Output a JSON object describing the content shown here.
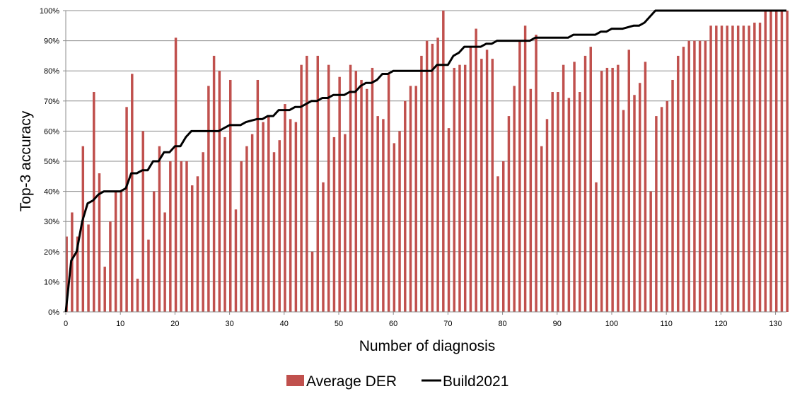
{
  "chart_data": {
    "type": "bar",
    "xlabel": "Number of diagnosis",
    "ylabel": "Top-3 accuracy",
    "xlim": [
      0,
      132
    ],
    "ylim": [
      0,
      100
    ],
    "x_ticks": [
      0,
      10,
      20,
      30,
      40,
      50,
      60,
      70,
      80,
      90,
      100,
      110,
      120,
      130
    ],
    "y_ticks": [
      0,
      10,
      20,
      30,
      40,
      50,
      60,
      70,
      80,
      90,
      100
    ],
    "y_tick_labels": [
      "0%",
      "10%",
      "20%",
      "30%",
      "40%",
      "50%",
      "60%",
      "70%",
      "80%",
      "90%",
      "100%"
    ],
    "grid": "horizontal",
    "legend_position": "bottom",
    "series": [
      {
        "name": "Average DER",
        "kind": "bar",
        "color": "#c0504d",
        "values": [
          25,
          33,
          25,
          55,
          29,
          73,
          46,
          15,
          30,
          40,
          40,
          68,
          79,
          11,
          60,
          24,
          40,
          55,
          33,
          50,
          91,
          50,
          50,
          42,
          45,
          53,
          75,
          85,
          80,
          58,
          77,
          34,
          50,
          55,
          59,
          77,
          63,
          65,
          53,
          57,
          69,
          64,
          63,
          82,
          85,
          20,
          85,
          43,
          82,
          58,
          78,
          59,
          82,
          80,
          77,
          74,
          81,
          65,
          64,
          79,
          56,
          60,
          70,
          75,
          75,
          85,
          90,
          89,
          91,
          100,
          61,
          81,
          82,
          82,
          88,
          94,
          84,
          87,
          84,
          45,
          50,
          65,
          75,
          90,
          95,
          74,
          92,
          55,
          64,
          73,
          73,
          82,
          71,
          83,
          73,
          85,
          88,
          43,
          80,
          81,
          81,
          82,
          67,
          87,
          72,
          76,
          83,
          40,
          65,
          68,
          70,
          77,
          85,
          88,
          90,
          90,
          90,
          90,
          95,
          95,
          95,
          95,
          95,
          95,
          95,
          95,
          96,
          96,
          100,
          100,
          100,
          100,
          100
        ]
      },
      {
        "name": "Build2021",
        "kind": "line",
        "color": "#000000",
        "x": [
          0,
          1,
          2,
          3,
          4,
          5,
          6,
          7,
          8,
          9,
          10,
          11,
          12,
          13,
          14,
          15,
          16,
          17,
          18,
          19,
          20,
          21,
          22,
          23,
          25,
          27,
          28,
          29,
          30,
          31,
          32,
          33,
          35,
          36,
          37,
          38,
          39,
          40,
          41,
          42,
          43,
          44,
          45,
          46,
          47,
          48,
          49,
          50,
          51,
          52,
          53,
          54,
          55,
          56,
          57,
          58,
          59,
          60,
          62,
          66,
          67,
          68,
          70,
          71,
          72,
          73,
          75,
          76,
          77,
          78,
          79,
          80,
          84,
          85,
          86,
          88,
          90,
          91,
          92,
          93,
          94,
          96,
          97,
          98,
          99,
          100,
          101,
          102,
          104,
          105,
          106,
          107,
          108,
          132
        ],
        "values": [
          0,
          17,
          20,
          30,
          36,
          37,
          39,
          40,
          40,
          40,
          40,
          41,
          46,
          46,
          47,
          47,
          50,
          50,
          53,
          53,
          55,
          55,
          58,
          60,
          60,
          60,
          60,
          61,
          62,
          62,
          62,
          63,
          64,
          64,
          65,
          65,
          67,
          67,
          67,
          68,
          68,
          69,
          70,
          70,
          71,
          71,
          72,
          72,
          72,
          73,
          73,
          75,
          76,
          76,
          77,
          79,
          79,
          80,
          80,
          80,
          80,
          82,
          82,
          85,
          86,
          88,
          88,
          88,
          89,
          89,
          90,
          90,
          90,
          90,
          91,
          91,
          91,
          91,
          91,
          92,
          92,
          92,
          92,
          93,
          93,
          94,
          94,
          94,
          95,
          95,
          96,
          98,
          100,
          100
        ]
      }
    ]
  }
}
